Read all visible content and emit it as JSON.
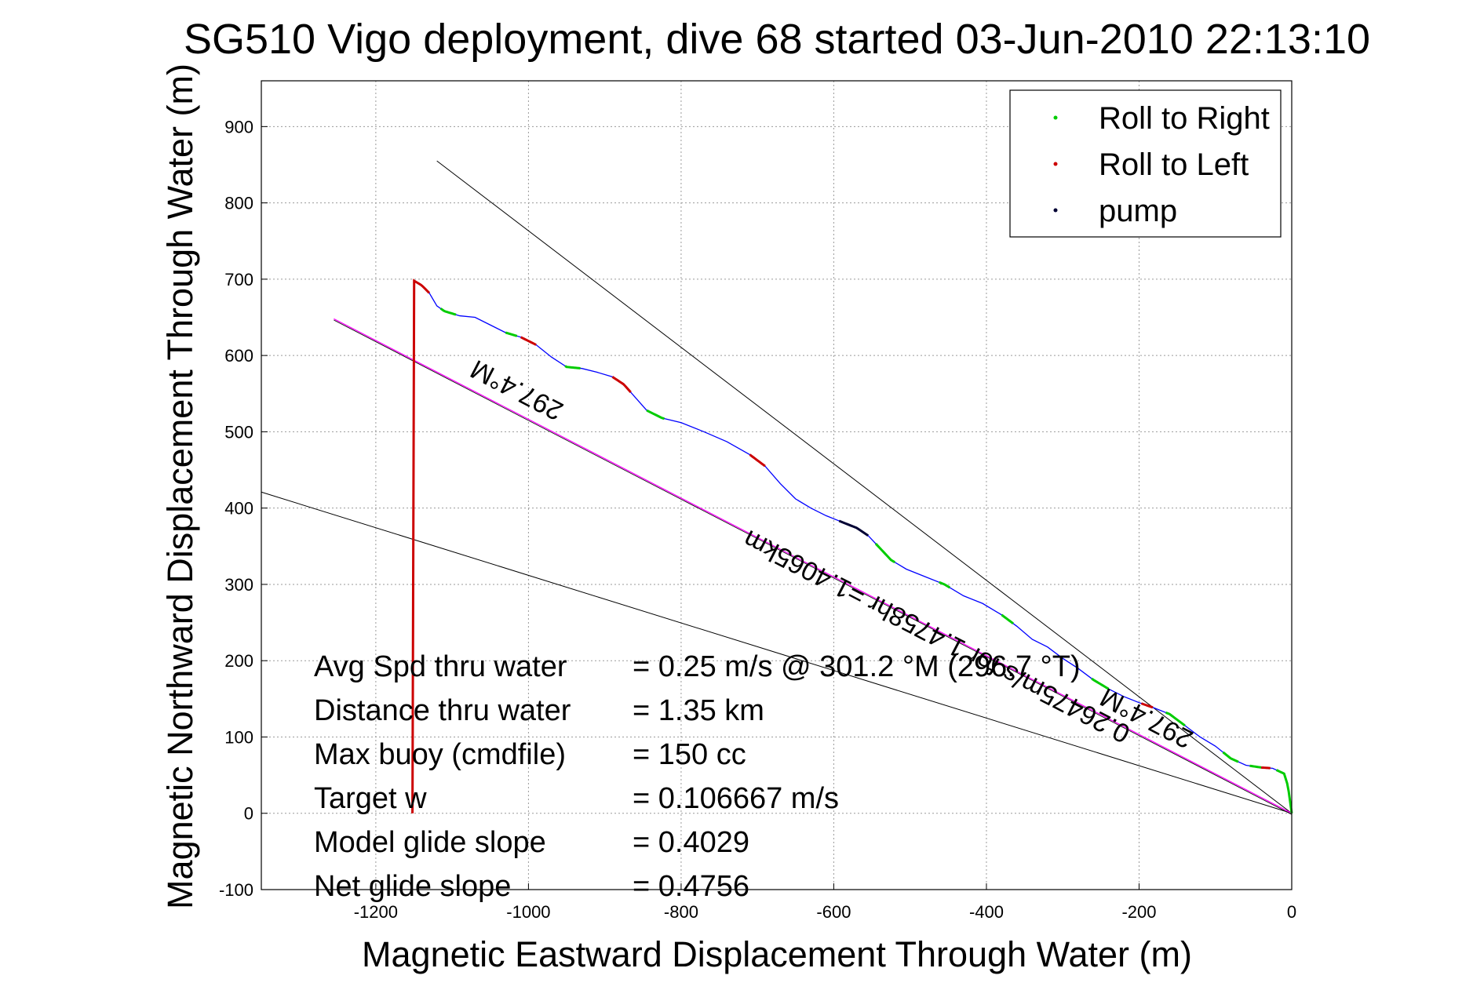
{
  "chart_data": {
    "type": "line",
    "title": "SG510 Vigo deployment, dive 68 started 03-Jun-2010 22:13:10",
    "xlabel": "Magnetic Eastward Displacement Through Water (m)",
    "ylabel": "Magnetic Northward Displacement Through Water (m)",
    "xlim": [
      -1350,
      0
    ],
    "ylim": [
      -100,
      960
    ],
    "xticks": [
      -1200,
      -1000,
      -800,
      -600,
      -400,
      -200,
      0
    ],
    "yticks": [
      -100,
      0,
      100,
      200,
      300,
      400,
      500,
      600,
      700,
      800,
      900
    ],
    "grid": true,
    "legend_position": "top-right",
    "legend": [
      {
        "label": "Roll to Right",
        "color": "#00cc00"
      },
      {
        "label": "Roll to Left",
        "color": "#cc0000"
      },
      {
        "label": "pump",
        "color": "#000033"
      }
    ],
    "colors": {
      "track": "#0000ff",
      "roll_right": "#00cc00",
      "roll_left": "#cc0000",
      "pump": "#000033",
      "reference_lines": "#000000",
      "heading_line": "#ff00ff"
    },
    "track": {
      "x": [
        -1150,
        -1140,
        -1130,
        -1120,
        -1110,
        -1090,
        -1070,
        -1050,
        -1030,
        -1010,
        -990,
        -970,
        -950,
        -930,
        -910,
        -890,
        -875,
        -860,
        -845,
        -825,
        -800,
        -770,
        -740,
        -710,
        -690,
        -670,
        -650,
        -630,
        -610,
        -590,
        -570,
        -555,
        -540,
        -525,
        -505,
        -480,
        -455,
        -430,
        -405,
        -380,
        -360,
        -340,
        -320,
        -300,
        -280,
        -260,
        -240,
        -220,
        -200,
        -180,
        -160,
        -140,
        -120,
        -100,
        -80,
        -60,
        -40,
        -25,
        -10,
        -5,
        0
      ],
      "y": [
        698,
        692,
        682,
        665,
        658,
        652,
        650,
        640,
        630,
        624,
        614,
        598,
        585,
        583,
        578,
        572,
        562,
        545,
        528,
        518,
        512,
        500,
        487,
        470,
        455,
        432,
        412,
        400,
        390,
        382,
        374,
        364,
        348,
        332,
        320,
        310,
        300,
        285,
        275,
        260,
        245,
        228,
        218,
        203,
        190,
        175,
        163,
        153,
        145,
        138,
        130,
        115,
        100,
        88,
        72,
        63,
        60,
        59,
        52,
        36,
        0
      ]
    },
    "roll_right_segments": [
      [
        -1115,
        -1095
      ],
      [
        -1030,
        -1015
      ],
      [
        -952,
        -932
      ],
      [
        -845,
        -822
      ],
      [
        -545,
        -520
      ],
      [
        -462,
        -448
      ],
      [
        -380,
        -365
      ],
      [
        -262,
        -240
      ],
      [
        -165,
        -140
      ],
      [
        -90,
        -70
      ],
      [
        -55,
        -40
      ],
      [
        -20,
        0
      ]
    ],
    "roll_left_segments": [
      [
        -1152,
        -1130
      ],
      [
        -1010,
        -990
      ],
      [
        -890,
        -866
      ],
      [
        -710,
        -690
      ],
      [
        -197,
        -182
      ],
      [
        -40,
        -28
      ]
    ],
    "pump_segments": [
      [
        -593,
        -555
      ]
    ],
    "reference_lines": [
      {
        "x": [
          -1120,
          0
        ],
        "y": [
          855,
          0
        ]
      },
      {
        "x": [
          -1350,
          0
        ],
        "y": [
          421,
          0
        ]
      }
    ],
    "heading_line": {
      "x": [
        -1255,
        0
      ],
      "y": [
        648,
        0
      ]
    },
    "rotated_labels": [
      {
        "text": "297.4°M",
        "x": -1010,
        "y": 565,
        "angle": 27.4
      },
      {
        "text": "297.4°M",
        "x": -185,
        "y": 135,
        "angle": 27.4
      },
      {
        "text": "0.26475m/s for 1.4758hr =1.4065km",
        "x": -460,
        "y": 242,
        "angle": 27.4
      }
    ]
  },
  "annotations": [
    {
      "label": "Avg Spd thru water",
      "value": "=  0.25 m/s @ 301.2  °M (296.7  °T)"
    },
    {
      "label": "Distance thru water",
      "value": "=  1.35 km"
    },
    {
      "label": "Max buoy (cmdfile)",
      "value": "= 150 cc"
    },
    {
      "label": "Target w",
      "value": "= 0.106667 m/s"
    },
    {
      "label": "Model glide slope",
      "value": "= 0.4029"
    },
    {
      "label": "Net glide slope",
      "value": "= 0.4756"
    }
  ]
}
